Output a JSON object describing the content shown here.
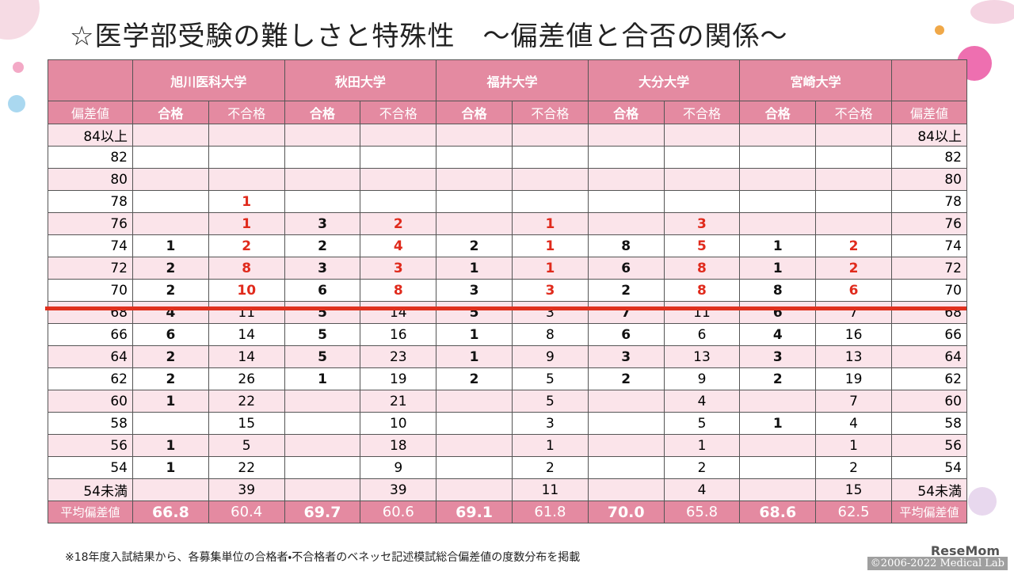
{
  "title": "☆医学部受験の難しさと特殊性　～偏差値と合否の関係～",
  "table": {
    "universities": [
      "旭川医科大学",
      "秋田大学",
      "福井大学",
      "大分大学",
      "宮崎大学"
    ],
    "subheader": {
      "score": "偏差値",
      "pass": "合格",
      "fail": "不合格"
    },
    "rows": [
      {
        "label": "84以上",
        "cells": [
          null,
          null,
          null,
          null,
          null,
          null,
          null,
          null,
          null,
          null
        ]
      },
      {
        "label": "82",
        "cells": [
          null,
          null,
          null,
          null,
          null,
          null,
          null,
          null,
          null,
          null
        ]
      },
      {
        "label": "80",
        "cells": [
          null,
          null,
          null,
          null,
          null,
          null,
          null,
          null,
          null,
          null
        ]
      },
      {
        "label": "78",
        "cells": [
          null,
          1,
          null,
          null,
          null,
          null,
          null,
          null,
          null,
          null
        ]
      },
      {
        "label": "76",
        "cells": [
          null,
          1,
          3,
          2,
          null,
          1,
          null,
          3,
          null,
          null
        ]
      },
      {
        "label": "74",
        "cells": [
          1,
          2,
          2,
          4,
          2,
          1,
          8,
          5,
          1,
          2
        ]
      },
      {
        "label": "72",
        "cells": [
          2,
          8,
          3,
          3,
          1,
          1,
          6,
          8,
          1,
          2
        ]
      },
      {
        "label": "70",
        "cells": [
          2,
          10,
          6,
          8,
          3,
          3,
          2,
          8,
          8,
          6
        ]
      },
      {
        "label": "68",
        "cells": [
          4,
          11,
          5,
          14,
          5,
          3,
          7,
          11,
          6,
          7
        ]
      },
      {
        "label": "66",
        "cells": [
          6,
          14,
          5,
          16,
          1,
          8,
          6,
          6,
          4,
          16
        ]
      },
      {
        "label": "64",
        "cells": [
          2,
          14,
          5,
          23,
          1,
          9,
          3,
          13,
          3,
          13
        ]
      },
      {
        "label": "62",
        "cells": [
          2,
          26,
          1,
          19,
          2,
          5,
          2,
          9,
          2,
          19
        ]
      },
      {
        "label": "60",
        "cells": [
          1,
          22,
          null,
          21,
          null,
          5,
          null,
          4,
          null,
          7
        ]
      },
      {
        "label": "58",
        "cells": [
          null,
          15,
          null,
          10,
          null,
          3,
          null,
          5,
          1,
          4
        ]
      },
      {
        "label": "56",
        "cells": [
          1,
          5,
          null,
          18,
          null,
          1,
          null,
          1,
          null,
          1
        ]
      },
      {
        "label": "54",
        "cells": [
          1,
          22,
          null,
          9,
          null,
          2,
          null,
          2,
          null,
          2
        ]
      },
      {
        "label": "54未満",
        "cells": [
          null,
          39,
          null,
          39,
          null,
          11,
          null,
          4,
          null,
          15
        ]
      }
    ],
    "average": {
      "label": "平均偏差値",
      "cells": [
        "66.8",
        "60.4",
        "69.7",
        "60.6",
        "69.1",
        "61.8",
        "70.0",
        "65.8",
        "68.6",
        "62.5"
      ]
    }
  },
  "footnote": "※18年度入試結果から、各募集単位の合格者・不合格者のベネッセ記述模試総合偏差値の度数分布を掲載",
  "watermark": {
    "brand": "ReseMom",
    "copyright": "©2006-2022 Medical Lab"
  }
}
